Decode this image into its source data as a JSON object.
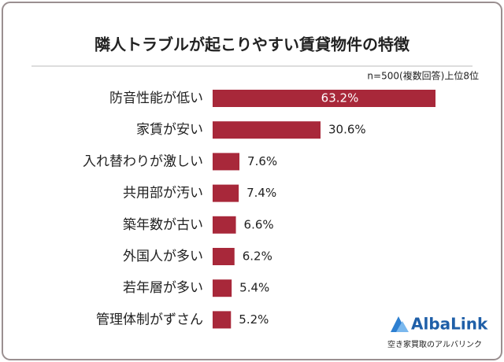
{
  "chart_data": {
    "type": "bar",
    "orientation": "horizontal",
    "title": "隣人トラブルが起こりやすい賃貸物件の特徴",
    "subtitle": "n=500(複数回答)上位8位",
    "categories": [
      "防音性能が低い",
      "家賃が安い",
      "入れ替わりが激しい",
      "共用部が汚い",
      "築年数が古い",
      "外国人が多い",
      "若年層が多い",
      "管理体制がずさん"
    ],
    "values": [
      63.2,
      30.6,
      7.6,
      7.4,
      6.6,
      6.2,
      5.4,
      5.2
    ],
    "value_labels": [
      "63.2%",
      "30.6%",
      "7.6%",
      "7.4%",
      "6.6%",
      "6.2%",
      "5.4%",
      "5.2%"
    ],
    "color": "#a8283a"
  },
  "logo": {
    "name": "AlbaLink",
    "tagline": "空き家買取のアルバリンク"
  }
}
